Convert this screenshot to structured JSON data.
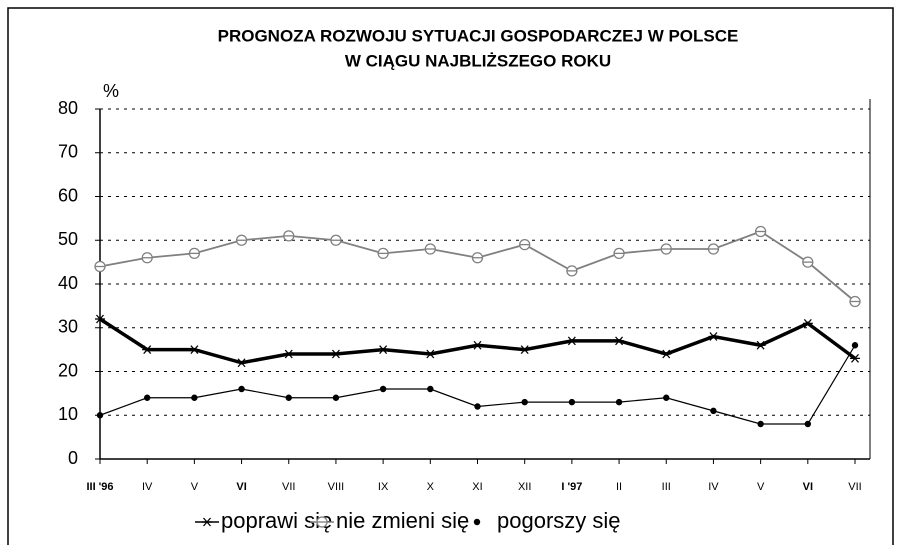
{
  "chart_data": {
    "type": "line",
    "title": [
      "PROGNOZA  ROZWOJU SYTUACJI GOSPODARCZEJ W POLSCE",
      "W CIĄGU NAJBLIŻSZEGO ROKU"
    ],
    "y_label": "%",
    "categories": [
      "III '96",
      "IV",
      "V",
      "VI",
      "VII",
      "VIII",
      "IX",
      "X",
      "XI",
      "XII",
      "I '97",
      "II",
      "III",
      "IV",
      "V",
      "VI",
      "VII"
    ],
    "bold_categories": [
      0,
      3,
      10,
      15
    ],
    "series": [
      {
        "name": "poprawi się",
        "color": "#000000",
        "marker": "star",
        "values": [
          32,
          25,
          25,
          22,
          24,
          24,
          25,
          24,
          26,
          25,
          27,
          27,
          24,
          28,
          26,
          31,
          23
        ]
      },
      {
        "name": "nie zmieni się",
        "color": "#808080",
        "marker": "circle",
        "values": [
          44,
          46,
          47,
          50,
          51,
          50,
          47,
          48,
          46,
          49,
          43,
          47,
          48,
          48,
          52,
          45,
          36
        ]
      },
      {
        "name": "pogorszy się",
        "color": "#000000",
        "marker": "dot",
        "values": [
          10,
          14,
          14,
          16,
          14,
          14,
          16,
          16,
          12,
          13,
          13,
          13,
          14,
          11,
          8,
          8,
          26
        ]
      }
    ],
    "ylim": [
      0,
      80
    ],
    "yticks": [
      0,
      10,
      20,
      30,
      40,
      50,
      60,
      70,
      80
    ],
    "grid": true
  }
}
